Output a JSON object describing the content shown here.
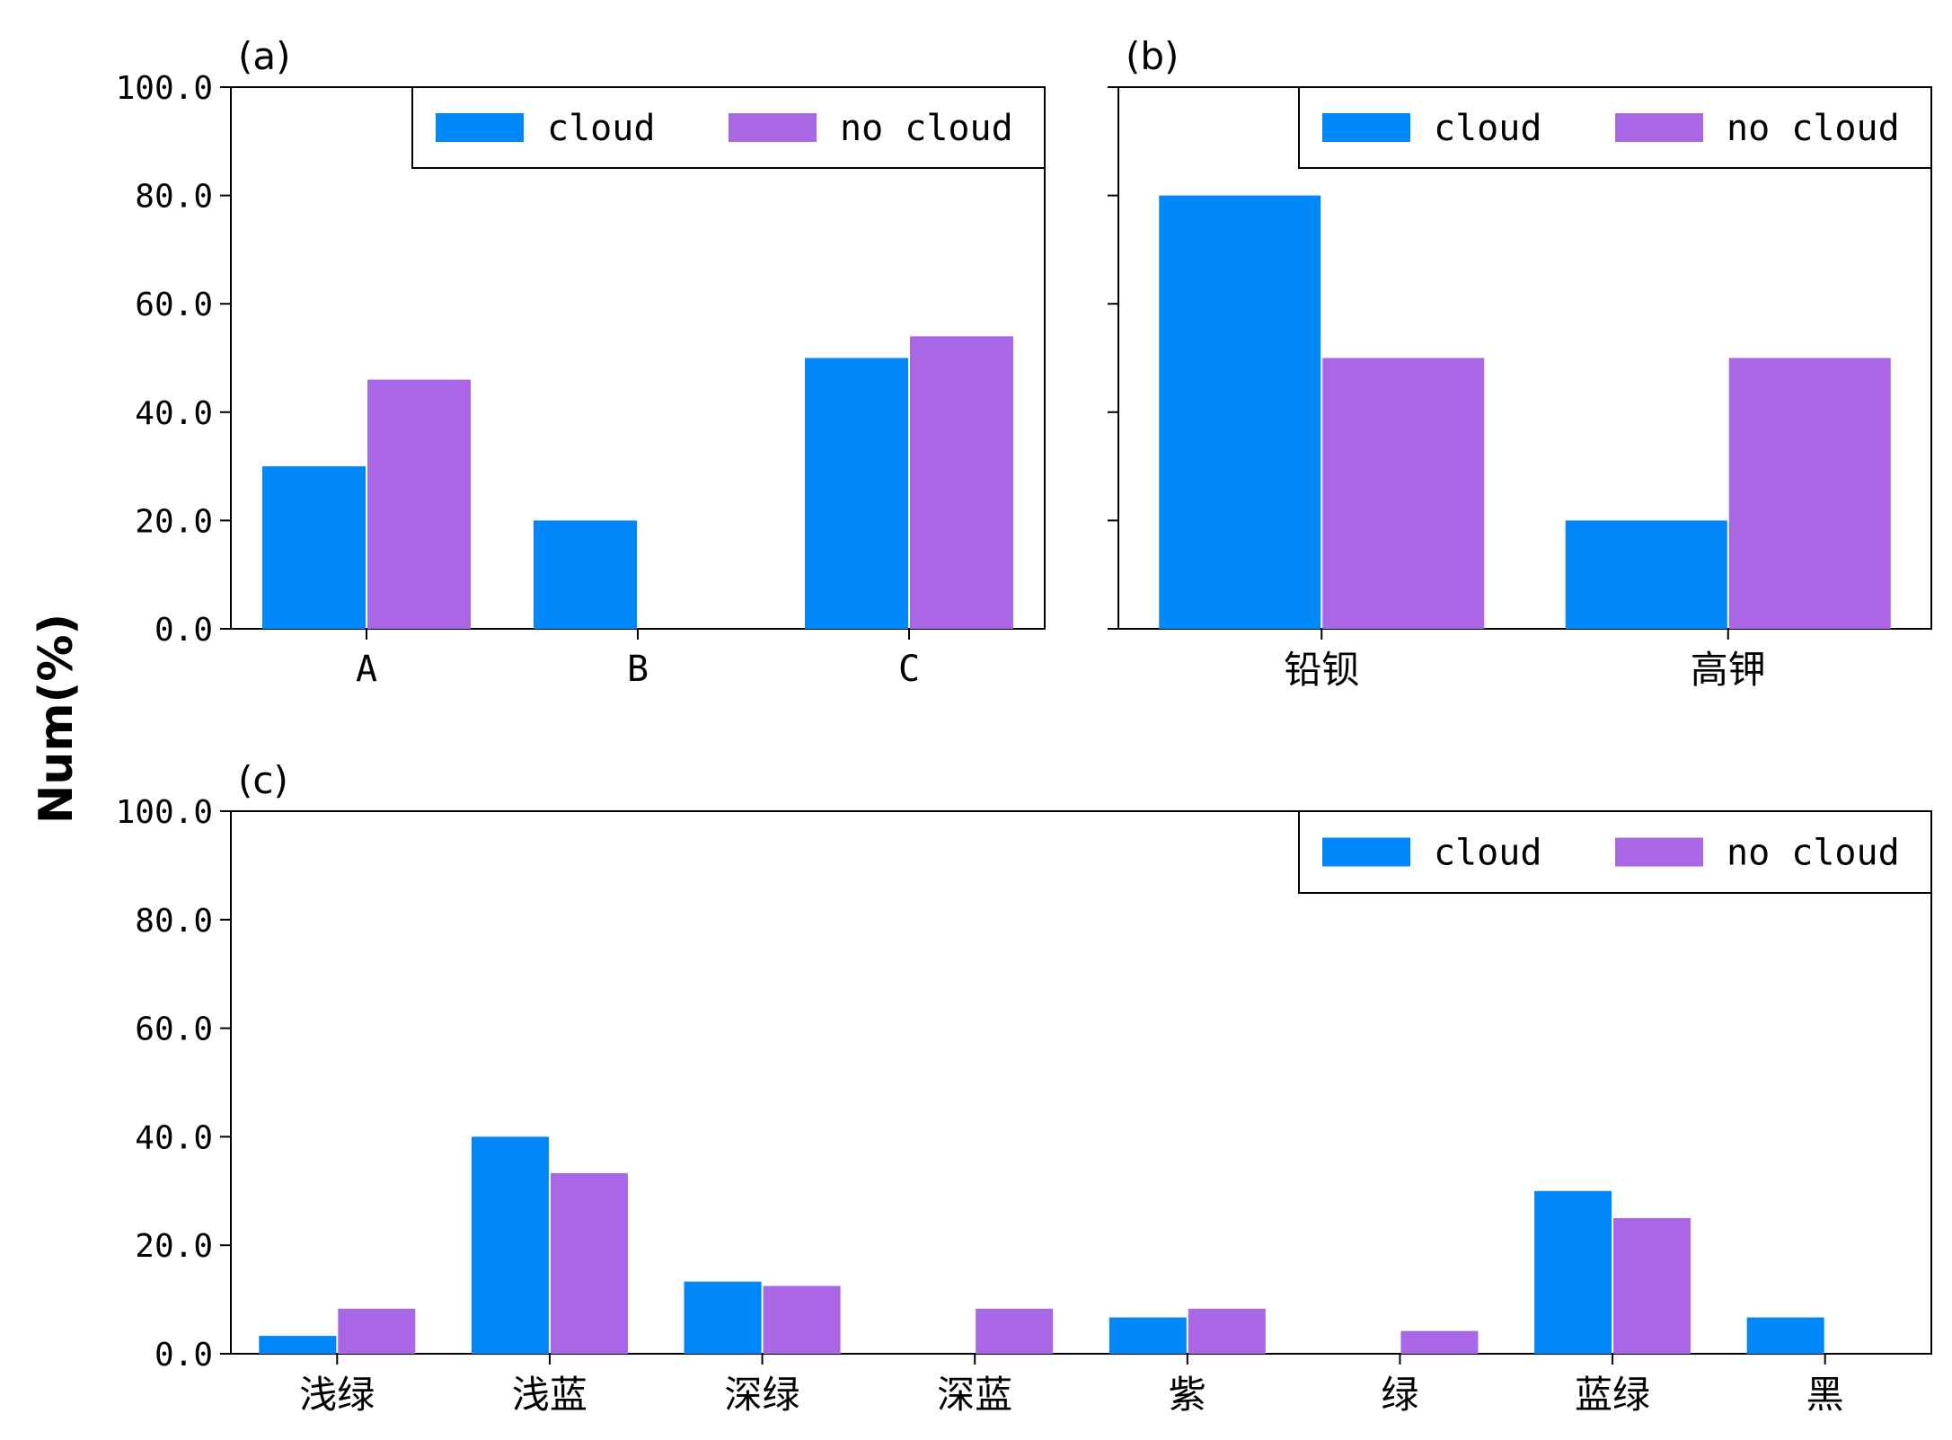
{
  "colors": {
    "cloud": "#0087fa",
    "no_cloud": "#a967e6"
  },
  "y_axis_label": "Num(%)",
  "chart_data": [
    {
      "type": "bar",
      "panel_label": "(a)",
      "categories": [
        "A",
        "B",
        "C"
      ],
      "series": [
        {
          "name": "cloud",
          "values": [
            30,
            20,
            50
          ]
        },
        {
          "name": "no cloud",
          "values": [
            46,
            0,
            54
          ]
        }
      ],
      "ylim": [
        0,
        100
      ],
      "yticks": [
        "0.0",
        "20.0",
        "40.0",
        "60.0",
        "80.0",
        "100.0"
      ],
      "legend": "top-right"
    },
    {
      "type": "bar",
      "panel_label": "(b)",
      "categories": [
        "铅钡",
        "高钾"
      ],
      "series": [
        {
          "name": "cloud",
          "values": [
            80,
            20
          ]
        },
        {
          "name": "no cloud",
          "values": [
            50,
            50
          ]
        }
      ],
      "ylim": [
        0,
        100
      ],
      "legend": "top-right"
    },
    {
      "type": "bar",
      "panel_label": "(c)",
      "categories": [
        "浅绿",
        "浅蓝",
        "深绿",
        "深蓝",
        "紫",
        "绿",
        "蓝绿",
        "黑"
      ],
      "series": [
        {
          "name": "cloud",
          "values": [
            3.3,
            40,
            13.3,
            0,
            6.7,
            0,
            30,
            6.7
          ]
        },
        {
          "name": "no cloud",
          "values": [
            8.3,
            33.3,
            12.5,
            8.3,
            8.3,
            4.2,
            25,
            0
          ]
        }
      ],
      "ylim": [
        0,
        100
      ],
      "yticks": [
        "0.0",
        "20.0",
        "40.0",
        "60.0",
        "80.0",
        "100.0"
      ],
      "legend": "top-right"
    }
  ]
}
